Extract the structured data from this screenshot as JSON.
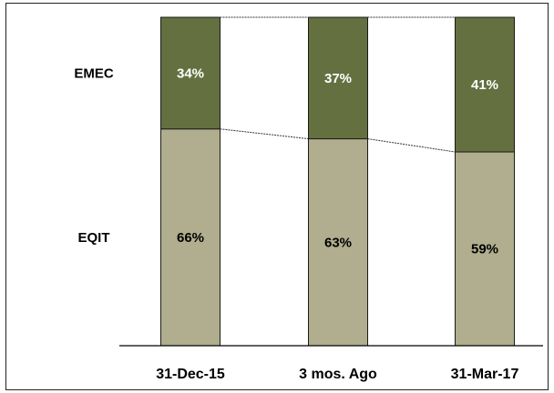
{
  "chart_data": {
    "type": "bar",
    "stacked": true,
    "percent": true,
    "title": "",
    "xlabel": "",
    "ylabel": "",
    "ylim": [
      0,
      100
    ],
    "grid": false,
    "categories": [
      "31-Dec-15",
      "3 mos. Ago",
      "31-Mar-17"
    ],
    "series": [
      {
        "name": "EQIT",
        "values": [
          66,
          63,
          59
        ],
        "labels": [
          "66%",
          "63%",
          "59%"
        ],
        "color": "#b0ae8e",
        "label_color": "#000000"
      },
      {
        "name": "EMEC",
        "values": [
          34,
          37,
          41
        ],
        "labels": [
          "34%",
          "37%",
          "41%"
        ],
        "color": "#64703f",
        "label_color": "#ffffff"
      }
    ],
    "series_connector_lines": true
  }
}
